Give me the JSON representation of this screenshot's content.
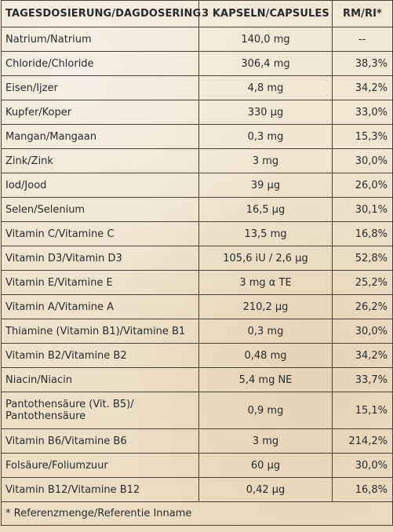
{
  "header": {
    "col1": "TAGESDOSIERUNG/DAGDOSERING",
    "col2": "3 KAPSELN/CAPSULES",
    "col3": "RM/RI*"
  },
  "rows": [
    {
      "name": "Natrium/Natrium",
      "dose": "140,0 mg",
      "ri": "--"
    },
    {
      "name": "Chloride/Chloride",
      "dose": "306,4 mg",
      "ri": "38,3%"
    },
    {
      "name": "Eisen/Ijzer",
      "dose": "4,8 mg",
      "ri": "34,2%"
    },
    {
      "name": "Kupfer/Koper",
      "dose": "330 µg",
      "ri": "33,0%"
    },
    {
      "name": "Mangan/Mangaan",
      "dose": "0,3 mg",
      "ri": "15,3%"
    },
    {
      "name": "Zink/Zink",
      "dose": "3 mg",
      "ri": "30,0%"
    },
    {
      "name": "Iod/Jood",
      "dose": "39 µg",
      "ri": "26,0%"
    },
    {
      "name": "Selen/Selenium",
      "dose": "16,5 µg",
      "ri": "30,1%"
    },
    {
      "name": "Vitamin C/Vitamine C",
      "dose": "13,5 mg",
      "ri": "16,8%"
    },
    {
      "name": "Vitamin D3/Vitamin D3",
      "dose": "105,6 iU / 2,6 µg",
      "ri": "52,8%"
    },
    {
      "name": "Vitamin E/Vitamine E",
      "dose": "3 mg α TE",
      "ri": "25,2%"
    },
    {
      "name": "Vitamin A/Vitamine A",
      "dose": "210,2 µg",
      "ri": "26,2%"
    },
    {
      "name": "Thiamine (Vitamin B1)/Vitamine B1",
      "dose": "0,3 mg",
      "ri": "30,0%"
    },
    {
      "name": "Vitamin B2/Vitamine B2",
      "dose": "0,48 mg",
      "ri": "34,2%"
    },
    {
      "name": "Niacin/Niacin",
      "dose": "5,4 mg NE",
      "ri": "33,7%"
    },
    {
      "name": "Pantothensäure (Vit. B5)/ Pantothensäure",
      "dose": "0,9 mg",
      "ri": "15,1%"
    },
    {
      "name": "Vitamin B6/Vitamine B6",
      "dose": "3 mg",
      "ri": "214,2%"
    },
    {
      "name": "Folsäure/Foliumzuur",
      "dose": "60 µg",
      "ri": "30,0%"
    },
    {
      "name": "Vitamin B12/Vitamine B12",
      "dose": "0,42 µg",
      "ri": "16,8%"
    }
  ],
  "footnote": "* Referenzmenge/Referentie Inname"
}
